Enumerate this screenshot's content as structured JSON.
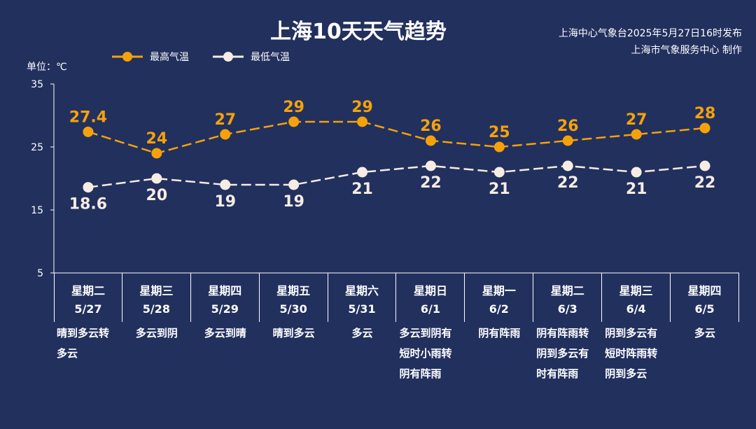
{
  "title": "上海10天天气趋势",
  "issuer": {
    "line1": "上海中心气象台2025年5月27日16时发布",
    "line2": "上海市气象服务中心 制作"
  },
  "unit_label": "单位：℃",
  "legend": {
    "high": "最高气温",
    "low": "最低气温"
  },
  "colors": {
    "background": "#22305e",
    "high": "#f5a20a",
    "low": "#f6ece4",
    "text": "#ffffff"
  },
  "days": [
    {
      "weekday": "星期二",
      "date": "5/27",
      "weather": "晴到多云转多云"
    },
    {
      "weekday": "星期三",
      "date": "5/28",
      "weather": "多云到阴"
    },
    {
      "weekday": "星期四",
      "date": "5/29",
      "weather": "多云到晴"
    },
    {
      "weekday": "星期五",
      "date": "5/30",
      "weather": "晴到多云"
    },
    {
      "weekday": "星期六",
      "date": "5/31",
      "weather": "多云"
    },
    {
      "weekday": "星期日",
      "date": "6/1",
      "weather": "多云到阴有短时小雨转阴有阵雨"
    },
    {
      "weekday": "星期一",
      "date": "6/2",
      "weather": "阴有阵雨"
    },
    {
      "weekday": "星期二",
      "date": "6/3",
      "weather": "阴有阵雨转阴到多云有时有阵雨"
    },
    {
      "weekday": "星期三",
      "date": "6/4",
      "weather": "阴到多云有短时阵雨转阴到多云"
    },
    {
      "weekday": "星期四",
      "date": "6/5",
      "weather": "多云"
    }
  ],
  "chart_data": {
    "type": "line",
    "title": "上海10天天气趋势",
    "ylabel": "单位：℃",
    "categories": [
      "5/27",
      "5/28",
      "5/29",
      "5/30",
      "5/31",
      "6/1",
      "6/2",
      "6/3",
      "6/4",
      "6/5"
    ],
    "series": [
      {
        "name": "最高气温",
        "values": [
          27.4,
          24,
          27,
          29,
          29,
          26,
          25,
          26,
          27,
          28
        ],
        "labels": [
          "27.4",
          "24",
          "27",
          "29",
          "29",
          "26",
          "25",
          "26",
          "27",
          "28"
        ],
        "style": "dashed",
        "color": "#f5a20a"
      },
      {
        "name": "最低气温",
        "values": [
          18.6,
          20,
          19,
          19,
          21,
          22,
          21,
          22,
          21,
          22
        ],
        "labels": [
          "18.6",
          "20",
          "19",
          "19",
          "21",
          "22",
          "21",
          "22",
          "21",
          "22"
        ],
        "style": "dashed",
        "color": "#f6ece4"
      }
    ],
    "yticks": [
      "5",
      "15",
      "25",
      "35"
    ],
    "ylim": [
      5,
      35
    ],
    "grid": false,
    "legend": "top-left"
  }
}
